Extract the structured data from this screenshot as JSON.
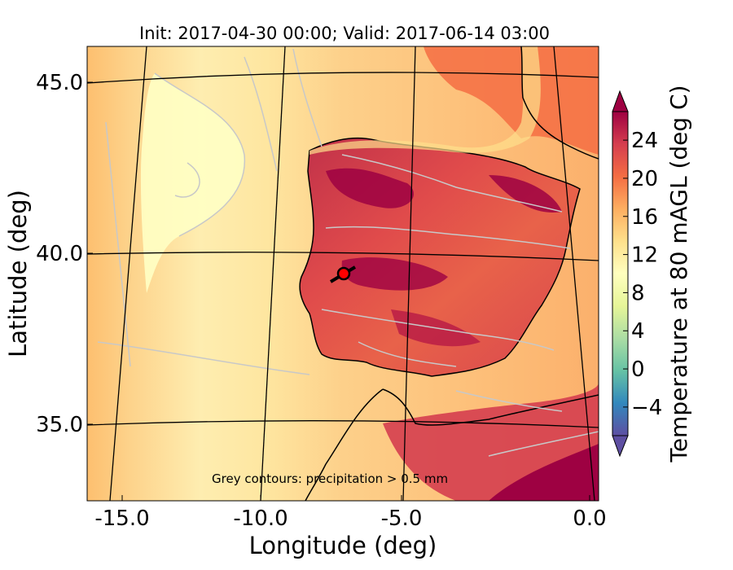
{
  "title": "Init: 2017-04-30 00:00; Valid: 2017-06-14 03:00",
  "xlabel": "Longitude (deg)",
  "ylabel": "Latitude (deg)",
  "annotation": "Grey contours: precipitation  > 0.5 mm",
  "x_ticks": [
    "-15.0",
    "-10.0",
    "-5.0",
    "0.0"
  ],
  "y_ticks": [
    "45.0",
    "40.0",
    "35.0"
  ],
  "colorbar": {
    "label": "Temperature at 80 mAGL (deg C)",
    "ticks": [
      "24",
      "20",
      "16",
      "12",
      "8",
      "4",
      "0",
      "−4"
    ],
    "range": [
      -7,
      27
    ],
    "extend": "both",
    "colors": [
      "#5e4fa2",
      "#3288bd",
      "#66c2a5",
      "#abdda4",
      "#e6f598",
      "#ffffbf",
      "#fee08b",
      "#fdae61",
      "#f46d43",
      "#d53e4f",
      "#9e0142"
    ]
  },
  "marker": {
    "label_icon": "location-marker-icon",
    "lon": -7.6,
    "lat": 39.4,
    "color": "#ff0000"
  },
  "chart_data": {
    "type": "heatmap",
    "xlim": [
      -16,
      0.2
    ],
    "ylim": [
      32.8,
      46
    ],
    "grid": true,
    "colorbar_variable": "Temperature at 80 mAGL (deg C)"
  }
}
